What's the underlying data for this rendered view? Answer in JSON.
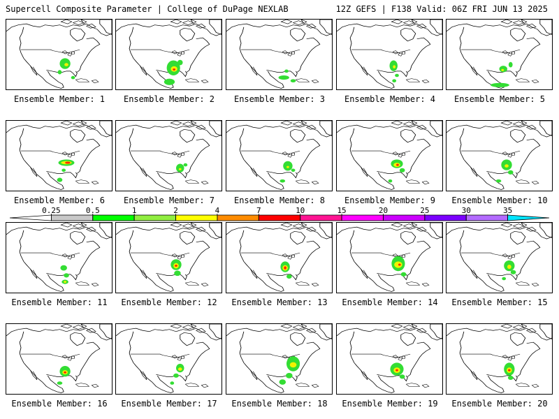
{
  "header": {
    "left_title": "Supercell Composite Parameter | College of DuPage NEXLAB",
    "right_title": "12Z GEFS | F138 Valid: 06Z FRI JUN 13 2025"
  },
  "colorbar": {
    "ticks": [
      "0.25",
      "0.5",
      "1",
      "2",
      "4",
      "7",
      "10",
      "15",
      "20",
      "25",
      "30",
      "35"
    ],
    "colors": [
      "#ffffff",
      "#c8c8c8",
      "#00ff00",
      "#90ee40",
      "#ffff00",
      "#ff8c00",
      "#ff0000",
      "#ff1493",
      "#ff00ff",
      "#cc00ff",
      "#7b00ff",
      "#b36bff",
      "#00e5ff"
    ]
  },
  "panels": [
    {
      "label": "Ensemble Member: 1",
      "blobs": [
        [
          "g",
          88,
          82,
          8,
          10
        ],
        [
          "y",
          90,
          84,
          3,
          3
        ],
        [
          "g",
          100,
          108,
          3,
          3
        ],
        [
          "g",
          80,
          98,
          3,
          4
        ]
      ]
    },
    {
      "label": "Ensemble Member: 2",
      "blobs": [
        [
          "g",
          86,
          90,
          10,
          14
        ],
        [
          "y",
          87,
          92,
          5,
          5
        ],
        [
          "r",
          87,
          93,
          2,
          2
        ],
        [
          "g",
          80,
          116,
          8,
          6
        ],
        [
          "g",
          96,
          80,
          4,
          5
        ]
      ]
    },
    {
      "label": "Ensemble Member: 3",
      "blobs": [
        [
          "g",
          86,
          108,
          8,
          4
        ],
        [
          "g",
          90,
          96,
          3,
          3
        ],
        [
          "g",
          100,
          114,
          4,
          3
        ]
      ]
    },
    {
      "label": "Ensemble Member: 4",
      "blobs": [
        [
          "g",
          85,
          86,
          6,
          10
        ],
        [
          "y",
          86,
          88,
          2,
          3
        ],
        [
          "g",
          90,
          104,
          3,
          3
        ],
        [
          "g",
          86,
          114,
          3,
          3
        ]
      ]
    },
    {
      "label": "Ensemble Member: 5",
      "blobs": [
        [
          "g",
          85,
          92,
          6,
          6
        ],
        [
          "g",
          96,
          84,
          3,
          5
        ],
        [
          "g",
          80,
          122,
          14,
          4
        ],
        [
          "y",
          84,
          94,
          2,
          2
        ]
      ]
    },
    {
      "label": "Ensemble Member: 6",
      "blobs": [
        [
          "g",
          90,
          78,
          12,
          6
        ],
        [
          "y",
          90,
          78,
          8,
          3
        ],
        [
          "r",
          92,
          78,
          4,
          2
        ],
        [
          "g",
          86,
          92,
          3,
          3
        ],
        [
          "g",
          80,
          110,
          4,
          4
        ]
      ]
    },
    {
      "label": "Ensemble Member: 7",
      "blobs": [
        [
          "g",
          96,
          88,
          6,
          8
        ],
        [
          "y",
          96,
          90,
          2,
          2
        ],
        [
          "g",
          104,
          82,
          3,
          3
        ]
      ]
    },
    {
      "label": "Ensemble Member: 8",
      "blobs": [
        [
          "g",
          92,
          84,
          7,
          9
        ],
        [
          "y",
          92,
          86,
          2,
          2
        ],
        [
          "g",
          100,
          92,
          3,
          3
        ],
        [
          "g",
          84,
          112,
          4,
          3
        ]
      ]
    },
    {
      "label": "Ensemble Member: 9",
      "blobs": [
        [
          "g",
          90,
          80,
          9,
          8
        ],
        [
          "y",
          90,
          82,
          5,
          4
        ],
        [
          "r",
          91,
          82,
          2,
          2
        ],
        [
          "g",
          98,
          92,
          4,
          4
        ],
        [
          "g",
          80,
          112,
          3,
          3
        ]
      ]
    },
    {
      "label": "Ensemble Member: 10",
      "blobs": [
        [
          "g",
          90,
          82,
          8,
          10
        ],
        [
          "y",
          90,
          84,
          3,
          3
        ],
        [
          "g",
          96,
          96,
          4,
          4
        ],
        [
          "g",
          78,
          112,
          4,
          3
        ]
      ]
    },
    {
      "label": "Ensemble Member: 11",
      "blobs": [
        [
          "g",
          86,
          84,
          5,
          5
        ],
        [
          "g",
          90,
          98,
          4,
          4
        ],
        [
          "g",
          88,
          110,
          5,
          4
        ],
        [
          "y",
          88,
          110,
          2,
          2
        ]
      ]
    },
    {
      "label": "Ensemble Member: 12",
      "blobs": [
        [
          "g",
          90,
          78,
          8,
          10
        ],
        [
          "y",
          90,
          80,
          4,
          5
        ],
        [
          "r",
          90,
          80,
          2,
          2
        ],
        [
          "g",
          92,
          94,
          5,
          5
        ]
      ]
    },
    {
      "label": "Ensemble Member: 13",
      "blobs": [
        [
          "g",
          88,
          82,
          7,
          10
        ],
        [
          "y",
          88,
          84,
          4,
          5
        ],
        [
          "r",
          88,
          84,
          2,
          3
        ],
        [
          "g",
          94,
          100,
          4,
          4
        ]
      ]
    },
    {
      "label": "Ensemble Member: 14",
      "blobs": [
        [
          "g",
          92,
          76,
          10,
          14
        ],
        [
          "y",
          92,
          78,
          6,
          6
        ],
        [
          "r",
          94,
          78,
          2,
          2
        ],
        [
          "g",
          100,
          96,
          4,
          4
        ]
      ]
    },
    {
      "label": "Ensemble Member: 15",
      "blobs": [
        [
          "g",
          94,
          80,
          8,
          10
        ],
        [
          "y",
          94,
          82,
          3,
          4
        ],
        [
          "g",
          100,
          92,
          4,
          4
        ],
        [
          "g",
          86,
          104,
          3,
          3
        ]
      ]
    },
    {
      "label": "Ensemble Member: 16",
      "blobs": [
        [
          "g",
          88,
          88,
          8,
          10
        ],
        [
          "y",
          88,
          90,
          4,
          4
        ],
        [
          "r",
          88,
          90,
          2,
          2
        ],
        [
          "g",
          80,
          110,
          4,
          3
        ]
      ]
    },
    {
      "label": "Ensemble Member: 17",
      "blobs": [
        [
          "g",
          96,
          82,
          6,
          8
        ],
        [
          "y",
          96,
          84,
          3,
          3
        ],
        [
          "g",
          90,
          96,
          4,
          4
        ],
        [
          "g",
          84,
          110,
          3,
          3
        ]
      ]
    },
    {
      "label": "Ensemble Member: 18",
      "blobs": [
        [
          "g",
          100,
          74,
          10,
          14
        ],
        [
          "y",
          100,
          76,
          5,
          5
        ],
        [
          "g",
          94,
          96,
          5,
          5
        ],
        [
          "g",
          84,
          108,
          5,
          5
        ]
      ]
    },
    {
      "label": "Ensemble Member: 19",
      "blobs": [
        [
          "g",
          90,
          84,
          10,
          12
        ],
        [
          "y",
          90,
          86,
          5,
          5
        ],
        [
          "r",
          90,
          86,
          2,
          2
        ],
        [
          "g",
          98,
          98,
          4,
          4
        ]
      ]
    },
    {
      "label": "Ensemble Member: 20",
      "blobs": [
        [
          "g",
          94,
          84,
          8,
          12
        ],
        [
          "y",
          94,
          86,
          4,
          5
        ],
        [
          "r",
          94,
          86,
          2,
          2
        ],
        [
          "g",
          96,
          100,
          4,
          4
        ]
      ]
    }
  ]
}
